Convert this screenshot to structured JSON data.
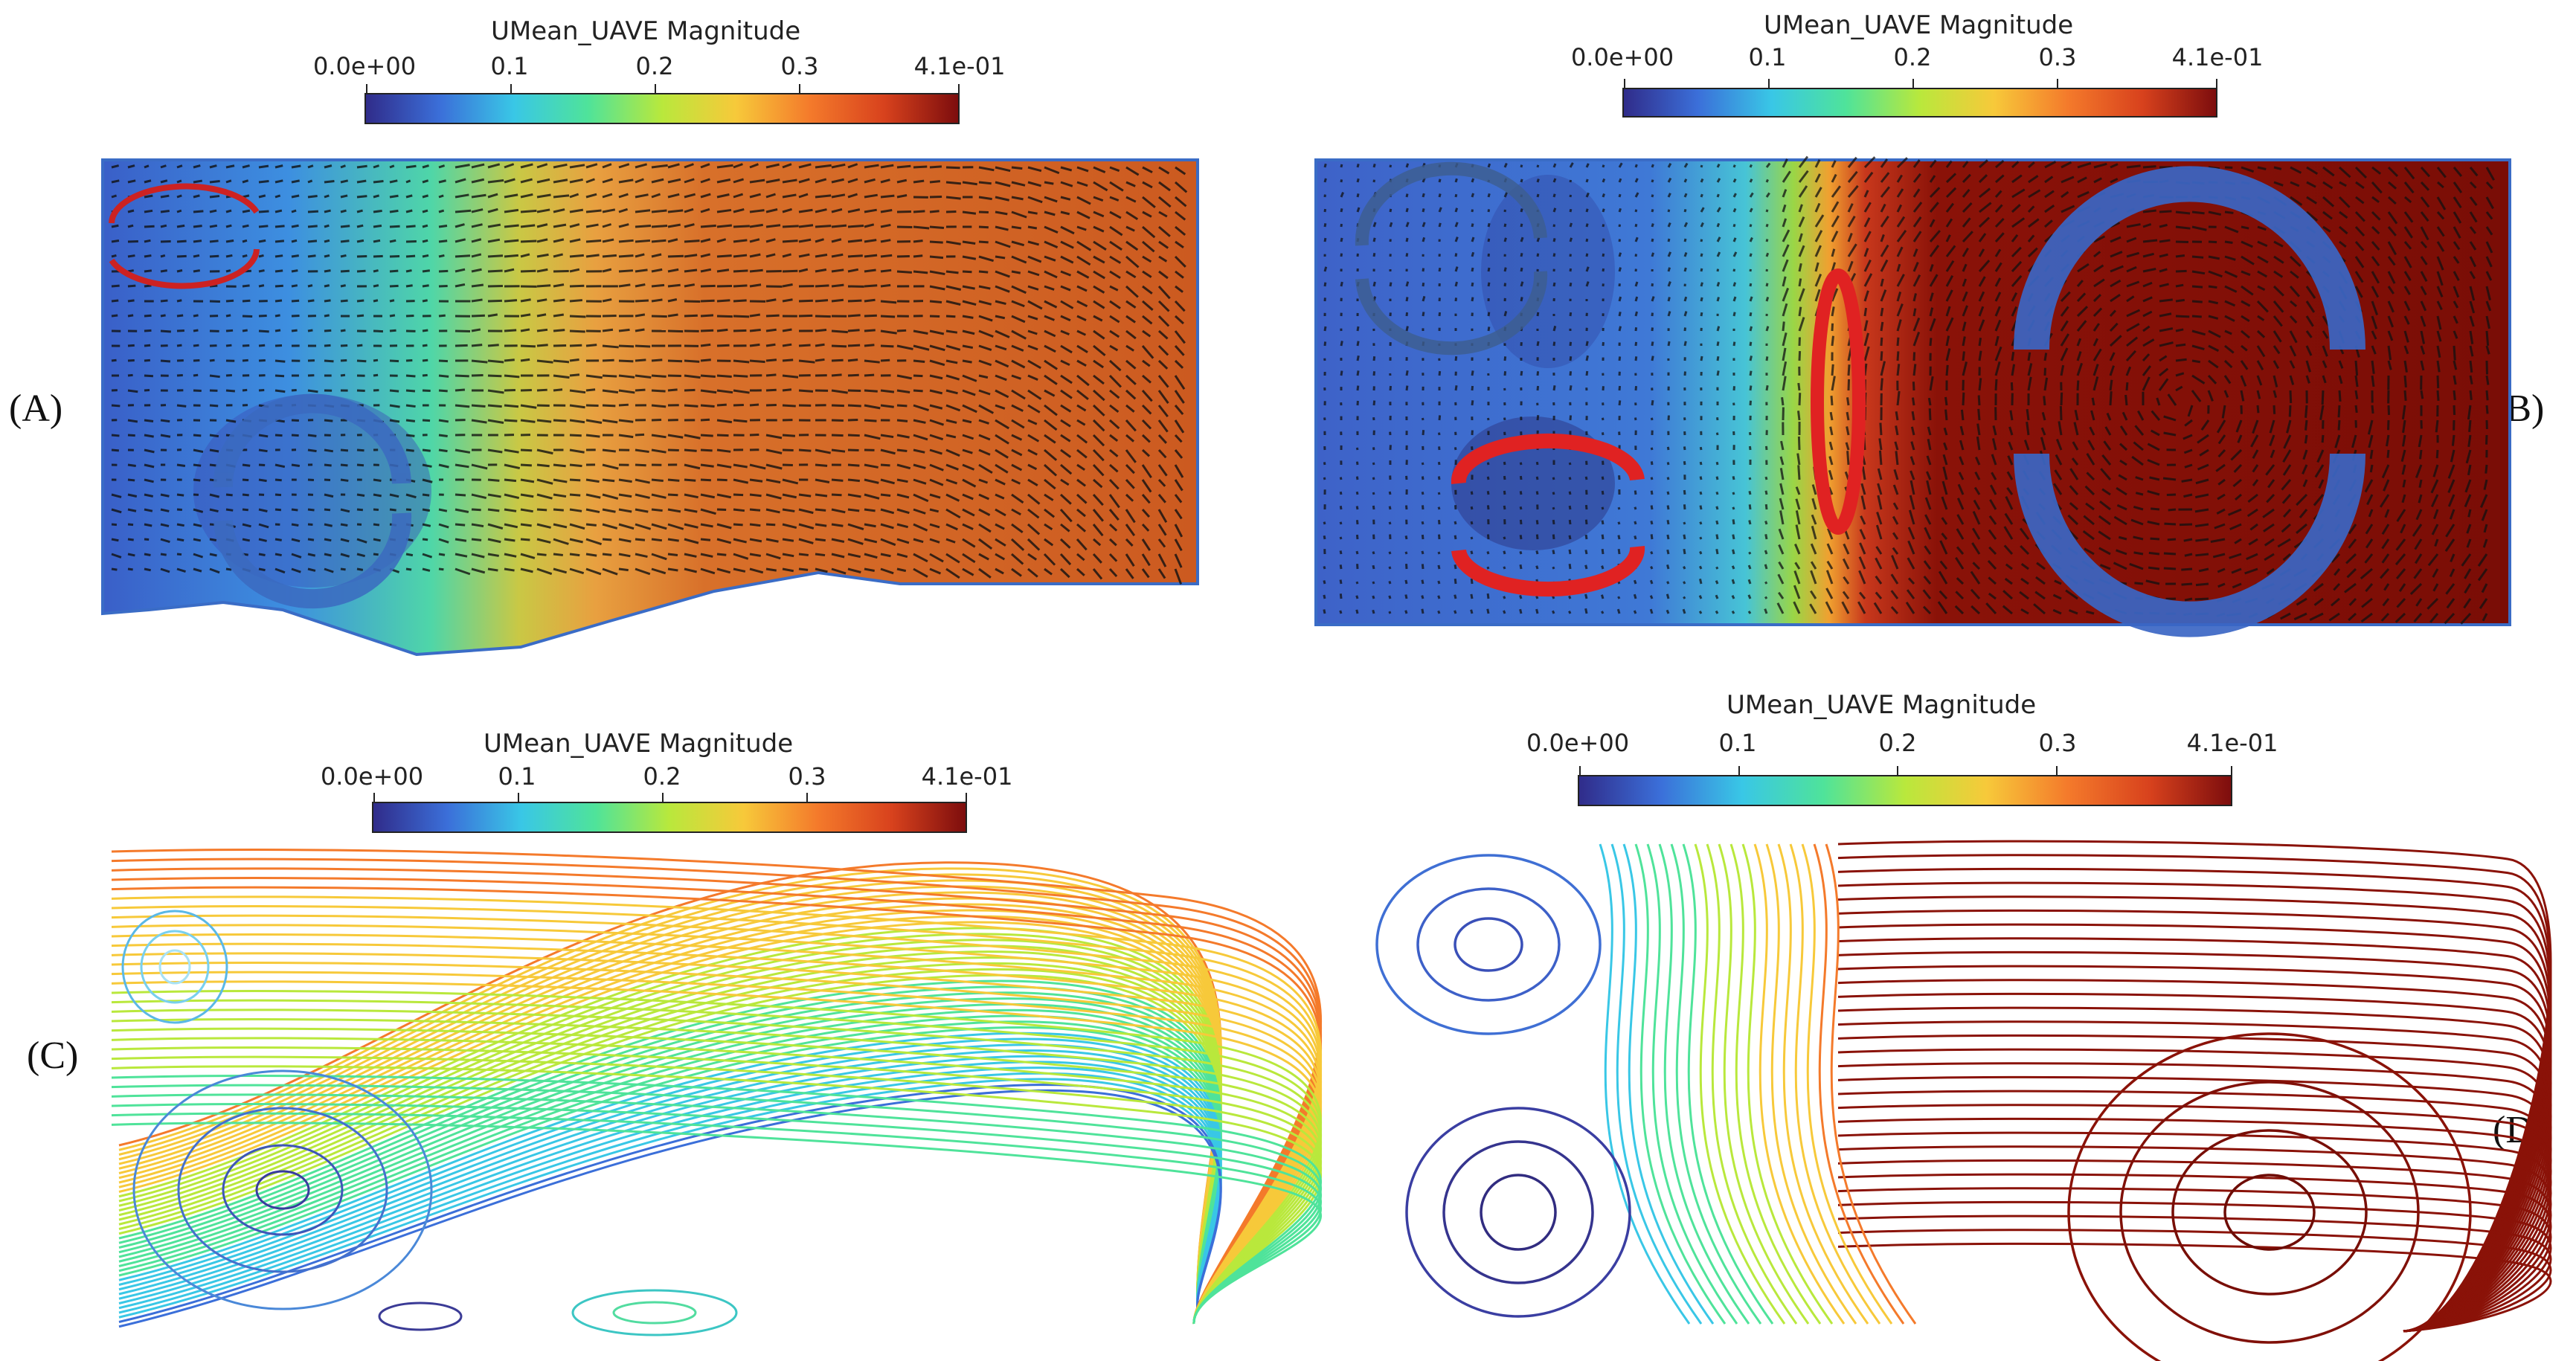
{
  "colorbar": {
    "title": "UMean_UAVE Magnitude",
    "ticks": [
      "0.0e+00",
      "0.1",
      "0.2",
      "0.3",
      "4.1e-01"
    ],
    "tick_values": [
      0.0,
      0.1,
      0.2,
      0.3,
      0.41
    ],
    "min": 0.0,
    "max": 0.41,
    "colors": [
      "#302c8a",
      "#3b6fd9",
      "#39c7e6",
      "#4fe39a",
      "#b9e83c",
      "#f7c93a",
      "#f47a2b",
      "#d8421d",
      "#7d0d0d"
    ]
  },
  "panels": [
    {
      "label": "(A)",
      "kind": "vector"
    },
    {
      "label": "(B)",
      "kind": "vector"
    },
    {
      "label": "(C)",
      "kind": "streamline"
    },
    {
      "label": "(D)",
      "kind": "streamline"
    }
  ]
}
